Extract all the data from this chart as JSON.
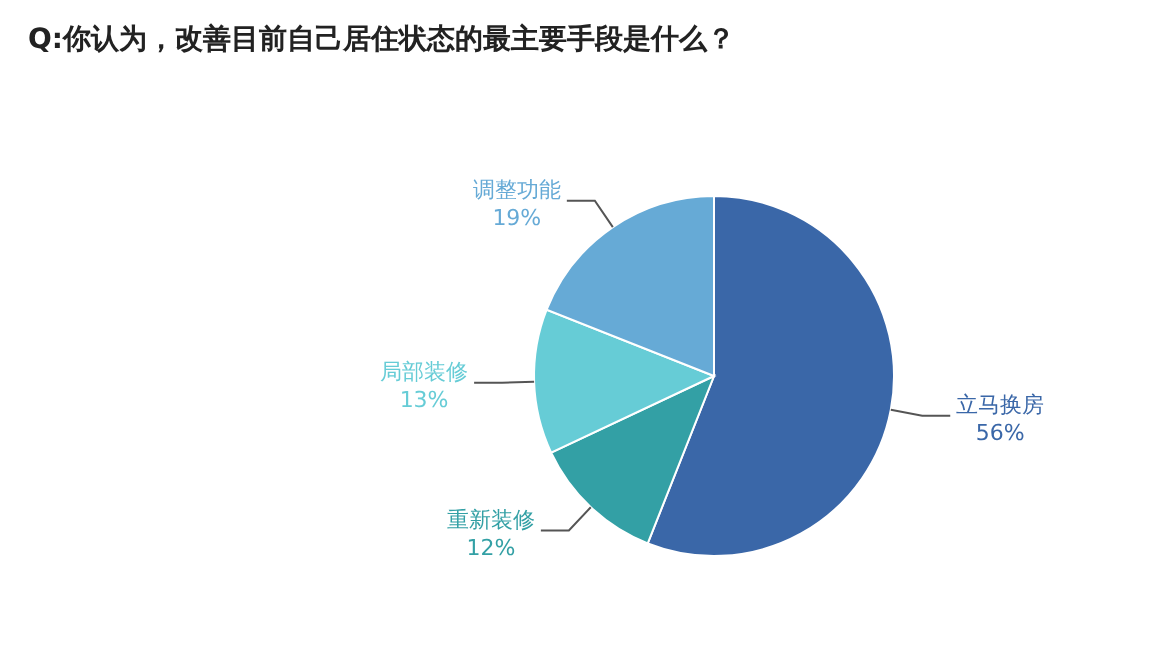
{
  "chart_data": {
    "type": "pie",
    "title": "Q:你认为，改善目前自己居住状态的最主要手段是什么？",
    "categories": [
      "立马换房",
      "重新装修",
      "局部装修",
      "调整功能"
    ],
    "values": [
      56,
      12,
      13,
      19
    ],
    "colors": [
      "#3a67a8",
      "#33a0a5",
      "#66ccd6",
      "#66aad6"
    ],
    "value_labels": [
      "56%",
      "12%",
      "13%",
      "19%"
    ]
  }
}
